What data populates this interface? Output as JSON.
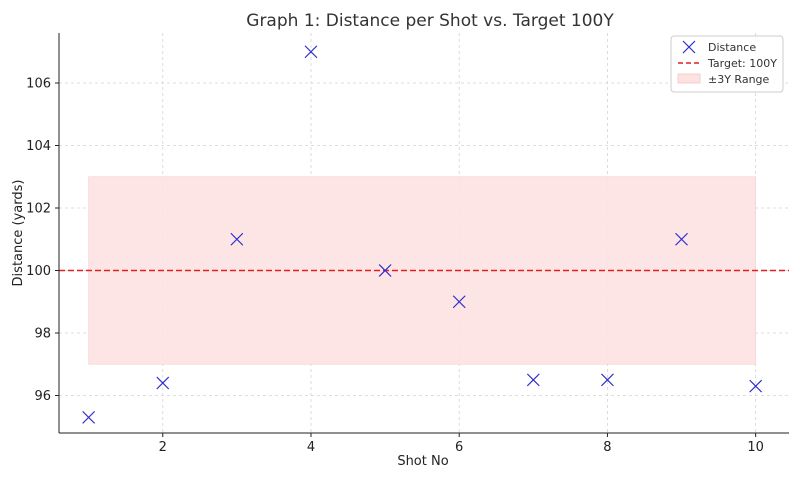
{
  "chart_data": {
    "type": "scatter",
    "title": "Graph 1: Distance per Shot vs. Target 100Y",
    "xlabel": "Shot No",
    "ylabel": "Distance (yards)",
    "xlim": [
      0.6,
      10.45
    ],
    "ylim": [
      94.8,
      107.6
    ],
    "xticks": [
      2,
      4,
      6,
      8,
      10
    ],
    "yticks": [
      96,
      98,
      100,
      102,
      104,
      106
    ],
    "grid": true,
    "legend_position": "top-right",
    "series": [
      {
        "name": "Distance",
        "marker": "x",
        "color": "#2b2bd0",
        "x": [
          1,
          2,
          3,
          4,
          5,
          6,
          7,
          8,
          9,
          10
        ],
        "y": [
          95.3,
          96.4,
          101,
          107,
          100,
          99,
          96.5,
          96.5,
          101,
          96.3
        ]
      }
    ],
    "target_line": {
      "name": "Target: 100Y",
      "y": 100,
      "color": "#e02020",
      "style": "dashed"
    },
    "range_band": {
      "name": "±3Y Range",
      "y_min": 97,
      "y_max": 103,
      "x_min": 1,
      "x_max": 10,
      "color": "#fde2e2"
    }
  }
}
